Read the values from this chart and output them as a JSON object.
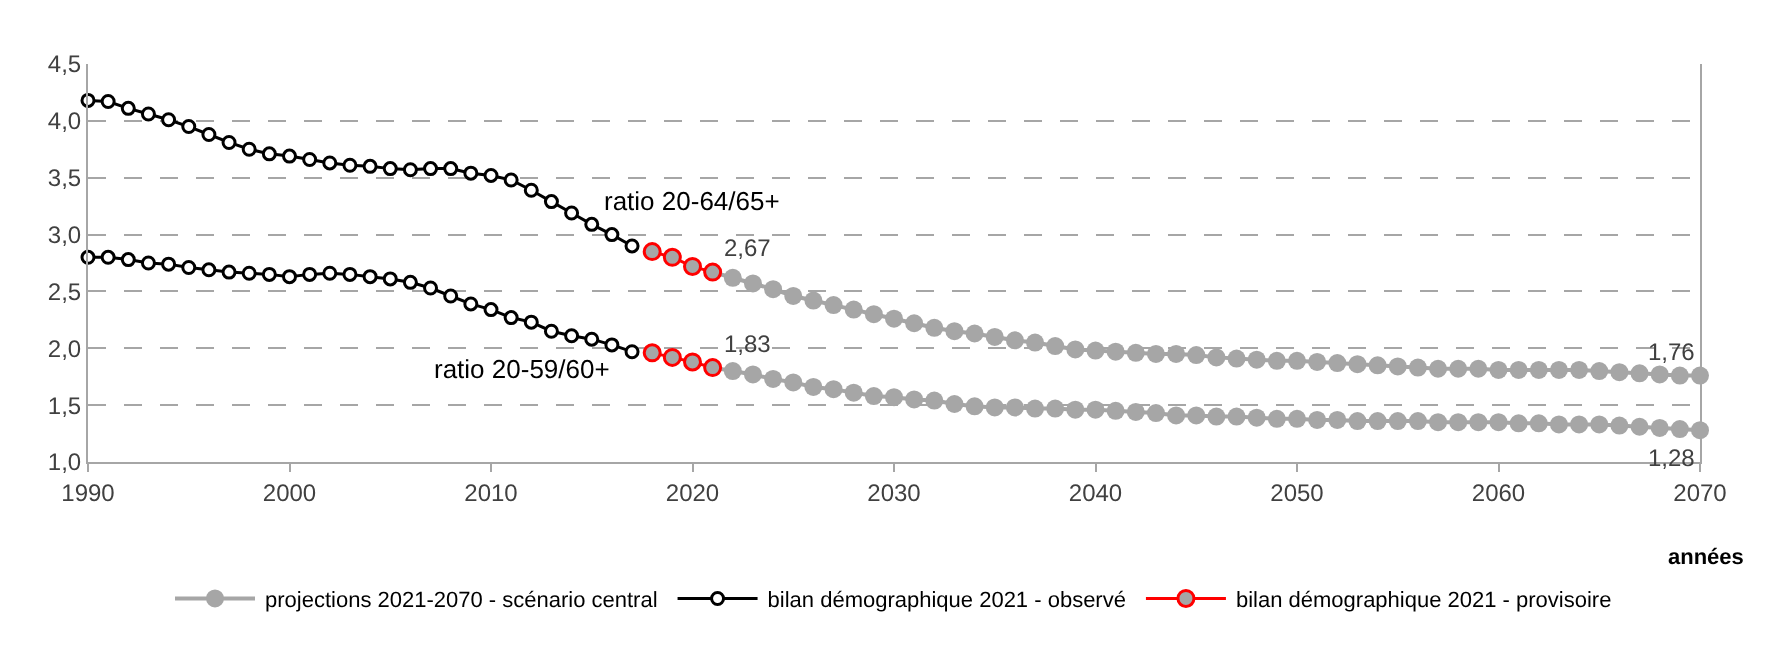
{
  "chart_data": {
    "type": "line",
    "xlabel": "années",
    "xlim": [
      1990,
      2070
    ],
    "xticks": [
      1990,
      2000,
      2010,
      2020,
      2030,
      2040,
      2050,
      2060,
      2070
    ],
    "ylim": [
      1,
      4.5
    ],
    "yticks": [
      {
        "value": 1,
        "label": "1,0"
      },
      {
        "value": 1.5,
        "label": "1,5"
      },
      {
        "value": 2,
        "label": "2,0"
      },
      {
        "value": 2.5,
        "label": "2,5"
      },
      {
        "value": 3,
        "label": "3,0"
      },
      {
        "value": 3.5,
        "label": "3,5"
      },
      {
        "value": 4,
        "label": "4,0"
      },
      {
        "value": 4.5,
        "label": "4,5"
      }
    ],
    "grid": "y",
    "legend": "bottom",
    "marker": "circle",
    "line_style": "solid",
    "series": [
      {
        "name": "projections 2021-2070 - scénario central",
        "color": "#a6a6a6",
        "x": [
          2021,
          2022,
          2023,
          2024,
          2025,
          2026,
          2027,
          2028,
          2029,
          2030,
          2031,
          2032,
          2033,
          2034,
          2035,
          2036,
          2037,
          2038,
          2039,
          2040,
          2041,
          2042,
          2043,
          2044,
          2045,
          2046,
          2047,
          2048,
          2049,
          2050,
          2051,
          2052,
          2053,
          2054,
          2055,
          2056,
          2057,
          2058,
          2059,
          2060,
          2061,
          2062,
          2063,
          2064,
          2065,
          2066,
          2067,
          2068,
          2069,
          2070
        ],
        "values": [
          2.67,
          2.62,
          2.57,
          2.52,
          2.46,
          2.42,
          2.38,
          2.34,
          2.3,
          2.26,
          2.22,
          2.18,
          2.15,
          2.13,
          2.1,
          2.07,
          2.05,
          2.02,
          1.99,
          1.98,
          1.97,
          1.96,
          1.95,
          1.95,
          1.94,
          1.92,
          1.91,
          1.9,
          1.89,
          1.89,
          1.88,
          1.87,
          1.86,
          1.85,
          1.84,
          1.83,
          1.82,
          1.82,
          1.82,
          1.81,
          1.81,
          1.81,
          1.81,
          1.81,
          1.8,
          1.79,
          1.78,
          1.77,
          1.76,
          1.76
        ],
        "value_labels": [
          "2,67",
          null,
          null,
          null,
          null,
          null,
          null,
          null,
          null,
          null,
          null,
          null,
          null,
          null,
          null,
          null,
          null,
          null,
          null,
          null,
          null,
          null,
          null,
          null,
          null,
          null,
          null,
          null,
          null,
          null,
          null,
          null,
          null,
          null,
          null,
          null,
          null,
          null,
          null,
          null,
          null,
          null,
          null,
          null,
          null,
          null,
          null,
          null,
          null,
          "1,76"
        ]
      },
      {
        "name": "bilan démographique 2021 - observé",
        "color": "#000000",
        "x": [
          1990,
          1991,
          1992,
          1993,
          1994,
          1995,
          1996,
          1997,
          1998,
          1999,
          2000,
          2001,
          2002,
          2003,
          2004,
          2005,
          2006,
          2007,
          2008,
          2009,
          2010,
          2011,
          2012,
          2013,
          2014,
          2015,
          2016,
          2017
        ],
        "values": [
          4.18,
          4.17,
          4.11,
          4.06,
          4.01,
          3.95,
          3.88,
          3.81,
          3.75,
          3.71,
          3.69,
          3.66,
          3.63,
          3.61,
          3.6,
          3.58,
          3.57,
          3.58,
          3.58,
          3.54,
          3.52,
          3.48,
          3.39,
          3.29,
          3.19,
          3.09,
          3.0,
          2.9
        ]
      },
      {
        "name": "bilan démographique 2021 - provisoire",
        "color": "#ff0000",
        "x": [
          2018,
          2019,
          2020,
          2021
        ],
        "values": [
          2.85,
          2.8,
          2.72,
          2.67
        ]
      },
      {
        "color": "#a6a6a6",
        "x": [
          2021,
          2022,
          2023,
          2024,
          2025,
          2026,
          2027,
          2028,
          2029,
          2030,
          2031,
          2032,
          2033,
          2034,
          2035,
          2036,
          2037,
          2038,
          2039,
          2040,
          2041,
          2042,
          2043,
          2044,
          2045,
          2046,
          2047,
          2048,
          2049,
          2050,
          2051,
          2052,
          2053,
          2054,
          2055,
          2056,
          2057,
          2058,
          2059,
          2060,
          2061,
          2062,
          2063,
          2064,
          2065,
          2066,
          2067,
          2068,
          2069,
          2070
        ],
        "values": [
          1.83,
          1.8,
          1.77,
          1.73,
          1.7,
          1.66,
          1.64,
          1.61,
          1.58,
          1.57,
          1.55,
          1.54,
          1.51,
          1.49,
          1.48,
          1.48,
          1.47,
          1.47,
          1.46,
          1.46,
          1.45,
          1.44,
          1.43,
          1.41,
          1.41,
          1.4,
          1.4,
          1.39,
          1.38,
          1.38,
          1.37,
          1.37,
          1.36,
          1.36,
          1.36,
          1.36,
          1.35,
          1.35,
          1.35,
          1.35,
          1.34,
          1.34,
          1.33,
          1.33,
          1.33,
          1.32,
          1.31,
          1.3,
          1.29,
          1.28
        ],
        "value_labels": [
          "1,83",
          null,
          null,
          null,
          null,
          null,
          null,
          null,
          null,
          null,
          null,
          null,
          null,
          null,
          null,
          null,
          null,
          null,
          null,
          null,
          null,
          null,
          null,
          null,
          null,
          null,
          null,
          null,
          null,
          null,
          null,
          null,
          null,
          null,
          null,
          null,
          null,
          null,
          null,
          null,
          null,
          null,
          null,
          null,
          null,
          null,
          null,
          null,
          null,
          "1,28"
        ]
      },
      {
        "color": "#000000",
        "x": [
          1990,
          1991,
          1992,
          1993,
          1994,
          1995,
          1996,
          1997,
          1998,
          1999,
          2000,
          2001,
          2002,
          2003,
          2004,
          2005,
          2006,
          2007,
          2008,
          2009,
          2010,
          2011,
          2012,
          2013,
          2014,
          2015,
          2016,
          2017
        ],
        "values": [
          2.8,
          2.8,
          2.78,
          2.75,
          2.74,
          2.71,
          2.69,
          2.67,
          2.66,
          2.65,
          2.63,
          2.65,
          2.66,
          2.65,
          2.63,
          2.61,
          2.58,
          2.53,
          2.46,
          2.39,
          2.34,
          2.27,
          2.23,
          2.15,
          2.11,
          2.08,
          2.03,
          1.97
        ]
      },
      {
        "color": "#ff0000",
        "x": [
          2018,
          2019,
          2020,
          2021
        ],
        "values": [
          1.96,
          1.92,
          1.88,
          1.83
        ]
      }
    ],
    "annotations": [
      "ratio 20-64/65+",
      "ratio 20-59/60+"
    ]
  }
}
